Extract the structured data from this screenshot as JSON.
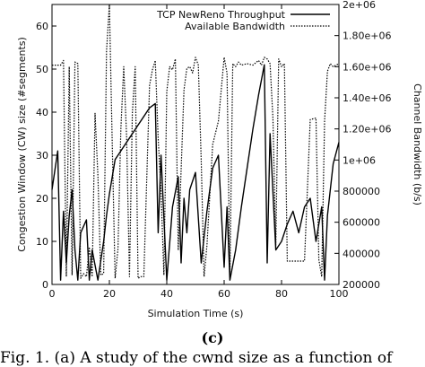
{
  "panel_label": "(c)",
  "caption": "Fig. 1. (a) A study of the cwnd size as a function of",
  "chart_data": {
    "type": "line",
    "xlabel": "Simulation Time (s)",
    "ylabel_left": "Congestion Window (CW) size (#segments)",
    "ylabel_right": "Channel Bandwidth (b/s)",
    "xlim": [
      0,
      100
    ],
    "ylim_left": [
      0,
      65
    ],
    "ylim_right": [
      200000,
      2000000
    ],
    "x_ticks": [
      "0",
      "20",
      "40",
      "60",
      "80",
      "100"
    ],
    "y_left_ticks": [
      "0",
      "10",
      "20",
      "30",
      "40",
      "50",
      "60"
    ],
    "y_right_ticks": [
      "200000",
      "400000",
      "600000",
      "800000",
      "1e+06",
      "1.20e+06",
      "1.40e+06",
      "1.60e+06",
      "1.80e+06",
      "2e+06"
    ],
    "legend_position": "top-right",
    "series": [
      {
        "name": "TCP NewReno Throughput",
        "axis": "left",
        "style": "solid",
        "x": [
          0,
          2,
          3,
          4,
          5,
          6,
          7,
          8,
          9,
          10,
          12,
          13,
          14,
          16,
          18,
          19,
          20,
          21,
          22,
          23,
          25,
          27,
          29,
          30,
          32,
          34,
          36,
          37,
          38,
          40,
          42,
          44,
          45,
          46,
          47,
          48,
          50,
          52,
          54,
          56,
          58,
          60,
          61,
          62,
          64,
          66,
          68,
          70,
          72,
          74,
          75,
          76,
          78,
          80,
          82,
          84,
          86,
          88,
          90,
          92,
          94,
          95,
          96,
          98,
          100
        ],
        "values": [
          22,
          31,
          1,
          17,
          5,
          16,
          22,
          8,
          1,
          12,
          15,
          1,
          8,
          1,
          10,
          16,
          21,
          25,
          29,
          30,
          32,
          34,
          36,
          37,
          39,
          41,
          42,
          12,
          30,
          1,
          18,
          25,
          5,
          20,
          12,
          22,
          26,
          5,
          17,
          27,
          30,
          4,
          18,
          1,
          8,
          18,
          27,
          36,
          44,
          51,
          5,
          35,
          8,
          10,
          14,
          17,
          12,
          18,
          20,
          10,
          18,
          1,
          16,
          28,
          33
        ]
      },
      {
        "name": "Available Bandwidth",
        "axis": "right",
        "style": "dotted",
        "x": [
          0,
          3,
          4,
          5,
          6,
          7,
          8,
          9,
          10,
          11,
          12,
          13,
          14,
          15,
          16,
          17,
          18,
          19,
          20,
          21,
          22,
          23,
          24,
          25,
          26,
          27,
          28,
          29,
          30,
          31,
          32,
          34,
          35,
          36,
          37,
          38,
          39,
          40,
          41,
          42,
          43,
          44,
          46,
          47,
          48,
          49,
          50,
          51,
          52,
          53,
          54,
          56,
          58,
          60,
          61,
          62,
          63,
          64,
          65,
          66,
          68,
          70,
          72,
          73,
          74,
          75,
          76,
          77,
          78,
          79,
          80,
          81,
          82,
          84,
          86,
          88,
          90,
          92,
          93,
          94,
          95,
          96,
          97,
          98,
          100
        ],
        "values": [
          1610000,
          1610000,
          1640000,
          250000,
          1600000,
          260000,
          1630000,
          1620000,
          240000,
          270000,
          250000,
          440000,
          250000,
          1300000,
          900000,
          260000,
          270000,
          1700000,
          2000000,
          1100000,
          240000,
          430000,
          1200000,
          1600000,
          1150000,
          250000,
          1300000,
          1600000,
          240000,
          250000,
          250000,
          1480000,
          1580000,
          1640000,
          1140000,
          800000,
          260000,
          1440000,
          1600000,
          1580000,
          1650000,
          420000,
          1450000,
          1590000,
          1600000,
          1560000,
          1660000,
          1610000,
          1000000,
          250000,
          450000,
          1100000,
          1250000,
          1660000,
          1560000,
          250000,
          1620000,
          1600000,
          1630000,
          1610000,
          1620000,
          1610000,
          1640000,
          1610000,
          1660000,
          1650000,
          1620000,
          1270000,
          450000,
          1650000,
          1600000,
          1620000,
          350000,
          350000,
          350000,
          350000,
          1260000,
          1270000,
          360000,
          250000,
          1250000,
          1570000,
          1620000,
          1600000,
          1620000
        ]
      }
    ]
  }
}
